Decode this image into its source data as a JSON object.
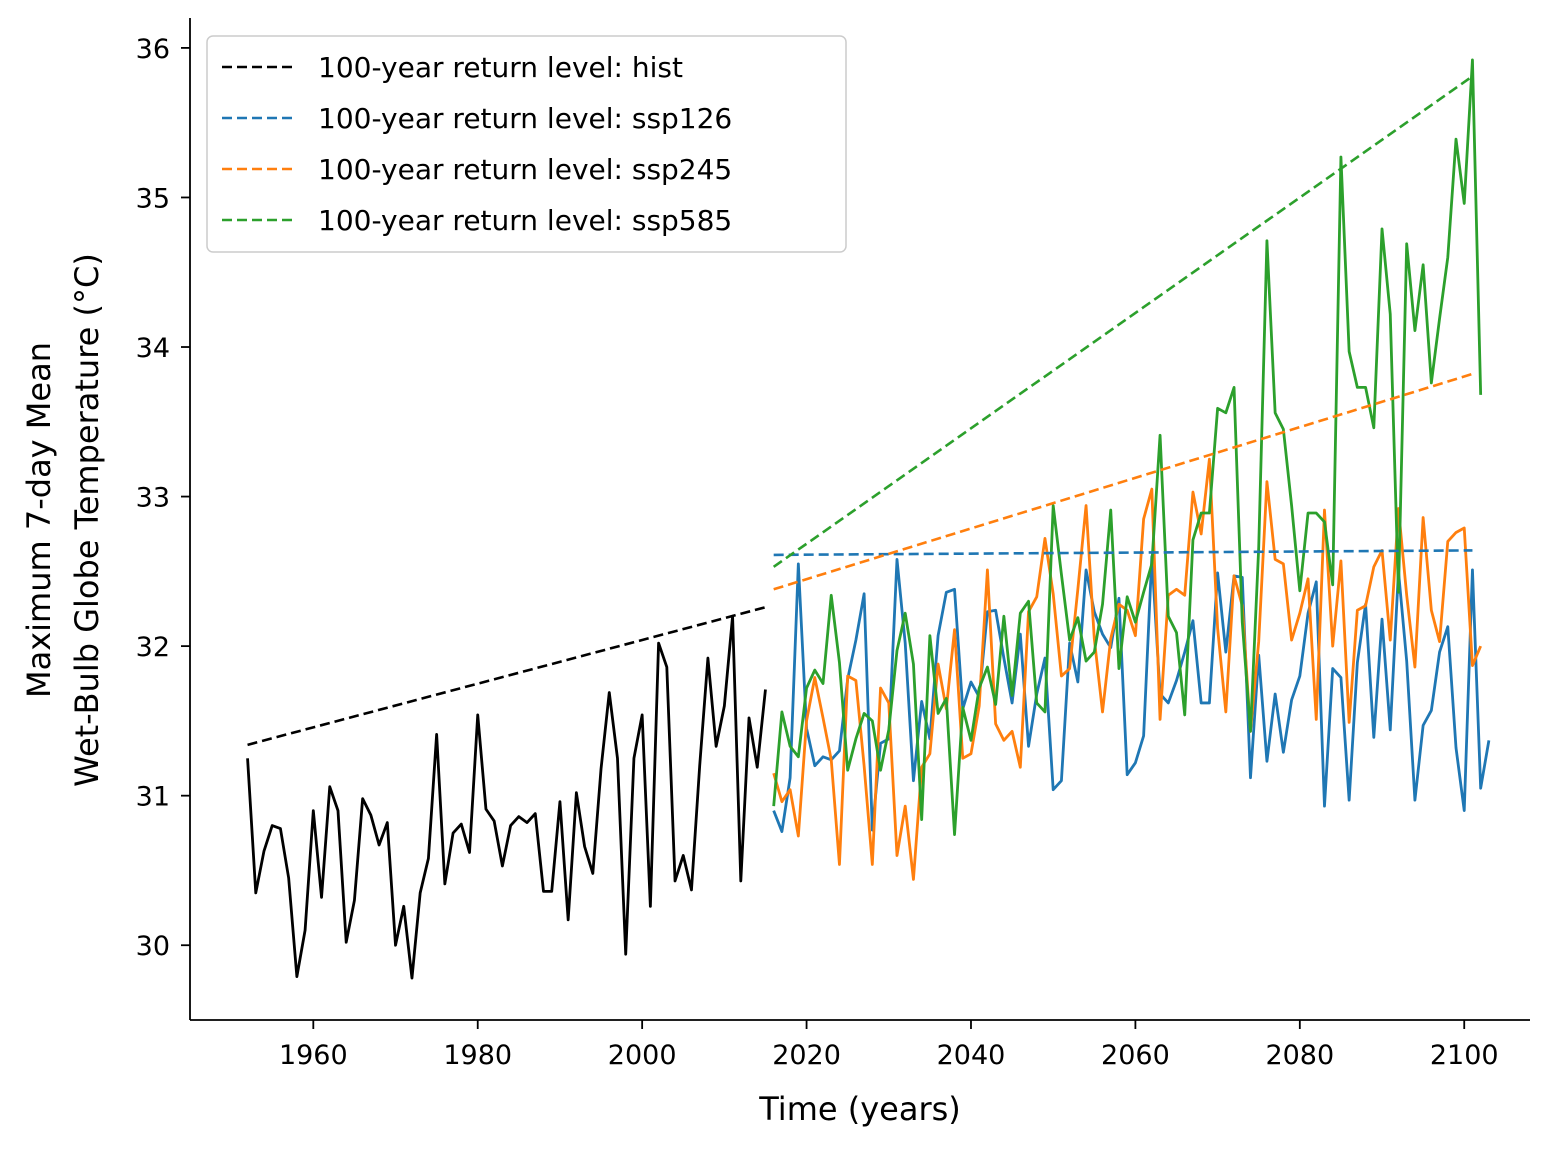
{
  "chart_data": {
    "type": "line",
    "title": "",
    "xlabel": "Time (years)",
    "ylabel_lines": [
      "Maximum 7-day Mean",
      "Wet-Bulb Globe Temperature (°C)"
    ],
    "xlim": [
      1945,
      2108
    ],
    "ylim": [
      29.5,
      36.2
    ],
    "xticks": [
      1960,
      1980,
      2000,
      2020,
      2040,
      2060,
      2080,
      2100
    ],
    "yticks": [
      30,
      31,
      32,
      33,
      34,
      35,
      36
    ],
    "grid": false,
    "legend_position": "top-left",
    "legend": [
      {
        "label": "100-year return level: hist",
        "color": "#000000"
      },
      {
        "label": "100-year return level: ssp126",
        "color": "#1f77b4"
      },
      {
        "label": "100-year return level: ssp245",
        "color": "#ff7f0e"
      },
      {
        "label": "100-year return level: ssp585",
        "color": "#2ca02c"
      }
    ],
    "return_levels": [
      {
        "name": "hist",
        "color": "#000000",
        "x": [
          1952,
          2015
        ],
        "y": [
          31.34,
          32.26
        ]
      },
      {
        "name": "ssp126",
        "color": "#1f77b4",
        "x": [
          2016,
          2101
        ],
        "y": [
          32.61,
          32.64
        ]
      },
      {
        "name": "ssp245",
        "color": "#ff7f0e",
        "x": [
          2016,
          2101
        ],
        "y": [
          32.38,
          33.82
        ]
      },
      {
        "name": "ssp585",
        "color": "#2ca02c",
        "x": [
          2016,
          2101
        ],
        "y": [
          32.53,
          35.81
        ]
      }
    ],
    "series": [
      {
        "name": "hist",
        "color": "#000000",
        "x_start": 1952,
        "values": [
          31.25,
          30.35,
          30.63,
          30.8,
          30.78,
          30.45,
          29.79,
          30.1,
          30.9,
          30.32,
          31.06,
          30.9,
          30.02,
          30.3,
          30.98,
          30.87,
          30.67,
          30.82,
          30.0,
          30.26,
          29.78,
          30.35,
          30.58,
          31.41,
          30.41,
          30.75,
          30.81,
          30.62,
          31.54,
          30.91,
          30.83,
          30.53,
          30.8,
          30.86,
          30.82,
          30.88,
          30.36,
          30.36,
          30.96,
          30.17,
          31.02,
          30.66,
          30.48,
          31.18,
          31.69,
          31.25,
          29.94,
          31.25,
          31.54,
          30.26,
          32.02,
          31.86,
          30.43,
          30.6,
          30.37,
          31.2,
          31.92,
          31.33,
          31.6,
          32.2,
          30.43,
          31.52,
          31.19,
          31.71
        ]
      },
      {
        "name": "ssp126",
        "color": "#1f77b4",
        "x_start": 2016,
        "values": [
          30.9,
          30.76,
          31.12,
          32.55,
          31.45,
          31.2,
          31.26,
          31.24,
          31.3,
          31.78,
          32.04,
          32.35,
          30.77,
          31.35,
          31.38,
          32.58,
          32.02,
          31.1,
          31.63,
          31.38,
          32.07,
          32.36,
          32.38,
          31.58,
          31.76,
          31.66,
          32.23,
          32.24,
          31.92,
          31.62,
          32.08,
          31.33,
          31.68,
          31.92,
          31.04,
          31.1,
          32.02,
          31.76,
          32.51,
          32.23,
          32.08,
          31.99,
          32.32,
          31.14,
          31.22,
          31.4,
          32.6,
          31.68,
          31.62,
          31.77,
          31.96,
          32.17,
          31.62,
          31.62,
          32.49,
          31.96,
          32.47,
          32.46,
          31.12,
          31.94,
          31.23,
          31.68,
          31.29,
          31.64,
          31.8,
          32.22,
          32.43,
          30.93,
          31.85,
          31.79,
          30.97,
          31.89,
          32.28,
          31.39,
          32.18,
          31.44,
          32.5,
          31.9,
          30.97,
          31.47,
          31.57,
          31.96,
          32.13,
          31.32,
          30.9,
          32.51,
          31.05,
          31.37
        ]
      },
      {
        "name": "ssp245",
        "color": "#ff7f0e",
        "x_start": 2016,
        "values": [
          31.15,
          30.96,
          31.04,
          30.73,
          31.5,
          31.79,
          31.52,
          31.24,
          30.54,
          31.8,
          31.77,
          31.2,
          30.54,
          31.72,
          31.62,
          30.6,
          30.93,
          30.44,
          31.19,
          31.28,
          31.88,
          31.58,
          32.11,
          31.25,
          31.28,
          31.6,
          32.51,
          31.48,
          31.37,
          31.43,
          31.19,
          32.23,
          32.33,
          32.72,
          32.35,
          31.8,
          31.85,
          32.38,
          32.94,
          32.05,
          31.56,
          32.05,
          32.28,
          32.24,
          32.07,
          32.85,
          33.05,
          31.51,
          32.34,
          32.38,
          32.34,
          33.03,
          32.75,
          33.25,
          32.12,
          31.56,
          32.47,
          32.27,
          31.43,
          32.03,
          33.1,
          32.58,
          32.55,
          32.04,
          32.22,
          32.45,
          31.51,
          32.91,
          32.0,
          32.57,
          31.49,
          32.24,
          32.27,
          32.53,
          32.64,
          32.04,
          32.92,
          32.34,
          31.86,
          32.86,
          32.24,
          32.03,
          32.7,
          32.76,
          32.79,
          31.87,
          32.0
        ]
      },
      {
        "name": "ssp585",
        "color": "#2ca02c",
        "x_start": 2016,
        "values": [
          30.93,
          31.56,
          31.33,
          31.26,
          31.72,
          31.84,
          31.75,
          32.34,
          31.89,
          31.17,
          31.38,
          31.55,
          31.5,
          31.17,
          31.44,
          31.97,
          32.22,
          31.88,
          30.84,
          32.07,
          31.55,
          31.65,
          30.74,
          31.59,
          31.37,
          31.72,
          31.86,
          31.61,
          32.2,
          31.67,
          32.22,
          32.3,
          31.62,
          31.56,
          32.94,
          32.48,
          32.04,
          32.19,
          31.9,
          31.96,
          32.28,
          32.91,
          31.85,
          32.33,
          32.16,
          32.36,
          32.55,
          33.41,
          32.2,
          32.09,
          31.54,
          32.71,
          32.89,
          32.89,
          33.59,
          33.56,
          33.73,
          32.16,
          31.43,
          32.66,
          34.71,
          33.56,
          33.45,
          32.94,
          32.37,
          32.89,
          32.89,
          32.83,
          32.41,
          35.27,
          33.97,
          33.73,
          33.73,
          33.46,
          34.79,
          34.22,
          32.36,
          34.69,
          34.11,
          34.55,
          33.76,
          34.19,
          34.6,
          35.39,
          34.96,
          35.92,
          33.68
        ]
      }
    ]
  }
}
